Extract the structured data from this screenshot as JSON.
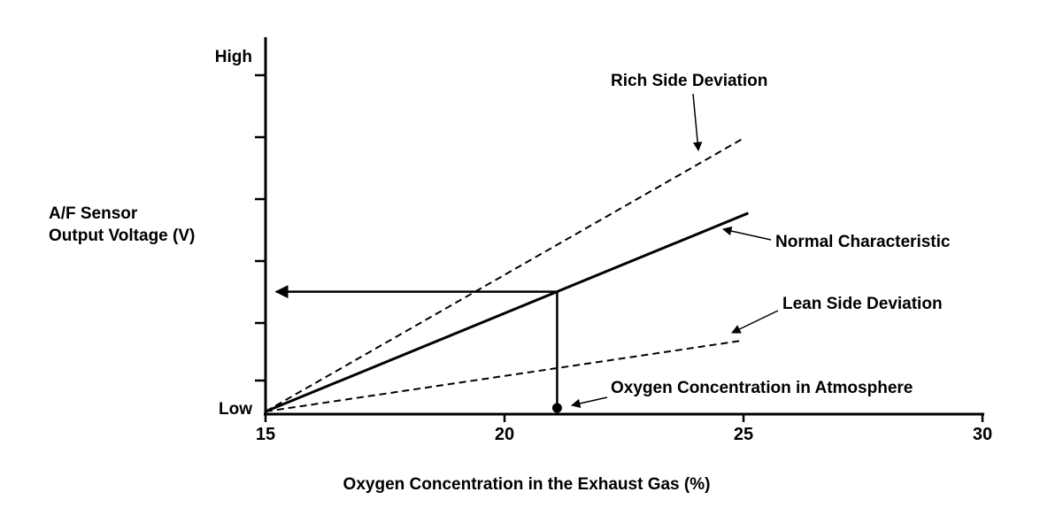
{
  "figure": {
    "background": "#ffffff",
    "line_color": "#000000"
  },
  "chart_data": {
    "type": "line",
    "title": "",
    "xlabel": "Oxygen Concentration in the Exhaust Gas (%)",
    "ylabel_lines": [
      "A/F Sensor",
      "Output Voltage (V)"
    ],
    "y_axis": {
      "top_label": "High",
      "bottom_label": "Low",
      "scale": "relative (Low to High)"
    },
    "x_ticks": [
      15,
      20,
      25,
      30
    ],
    "xlim": [
      15,
      30
    ],
    "grid": false,
    "legend_position": "inline-annotations",
    "series": [
      {
        "name": "Rich Side Deviation",
        "style": "dashed",
        "points": [
          [
            15,
            0
          ],
          [
            25,
            0.73
          ]
        ]
      },
      {
        "name": "Normal Characteristic",
        "style": "solid",
        "points": [
          [
            15,
            0
          ],
          [
            25.1,
            0.53
          ]
        ]
      },
      {
        "name": "Lean Side Deviation",
        "style": "dashed",
        "points": [
          [
            15,
            0
          ],
          [
            25,
            0.19
          ]
        ]
      }
    ],
    "highlight": {
      "label": "Oxygen Concentration in Atmosphere",
      "x": 21.1,
      "on_series": "Normal Characteristic",
      "marker": "filled-dot-on-x-axis",
      "readout": "horizontal arrow from curve to y-axis"
    }
  }
}
